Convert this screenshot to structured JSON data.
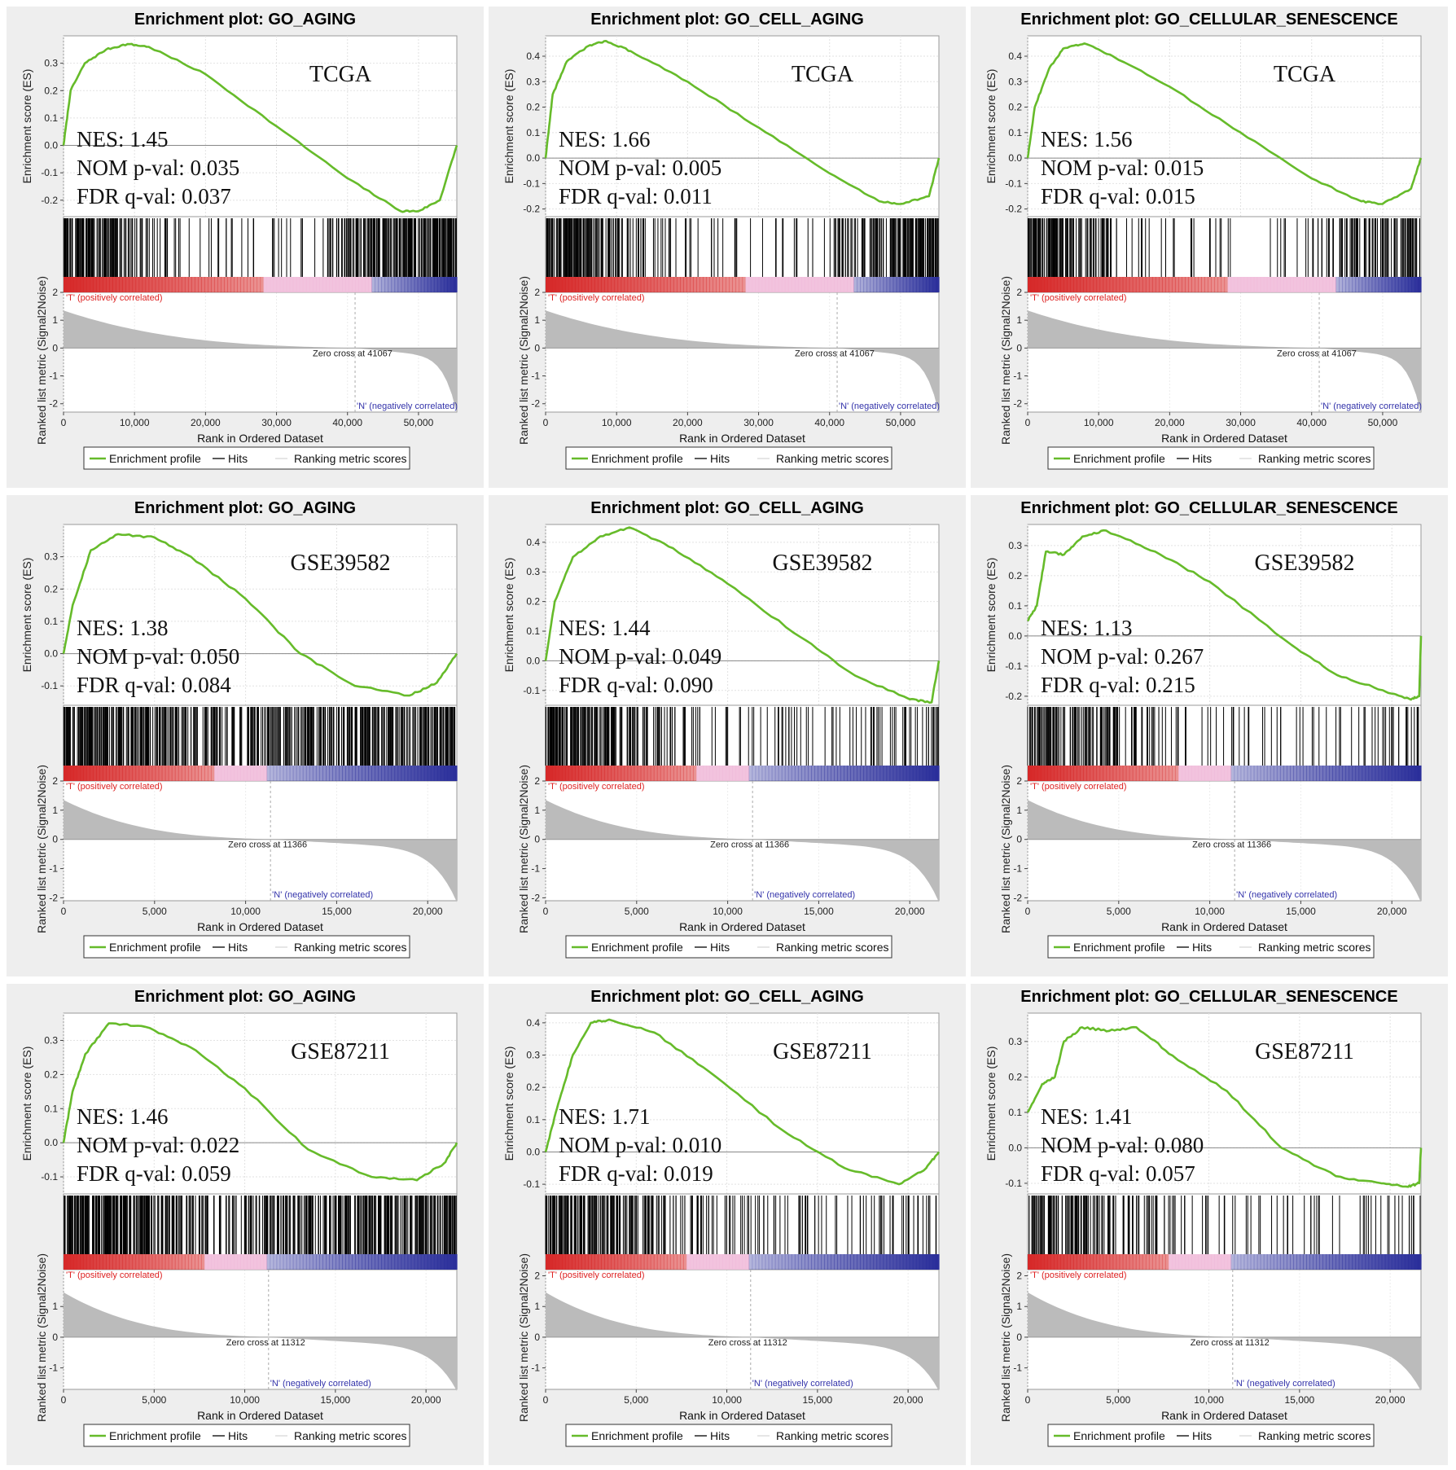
{
  "legend": {
    "profile": "Enrichment profile",
    "hits": "Hits",
    "ranking": "Ranking metric scores"
  },
  "labels": {
    "es_axis": "Enrichment score (ES)",
    "metric_axis": "Ranked list metric (Signal2Noise)",
    "x_axis": "Rank in Ordered Dataset",
    "pos": "'T' (positively correlated)",
    "neg": "'N' (negatively correlated)"
  },
  "colors": {
    "profile": "#66bb2a",
    "hits": "#000000",
    "metric": "#bbbbbb",
    "pos_text": "#dd2222",
    "neg_text": "#3333aa",
    "bar_red": "#d62828",
    "bar_pink": "#f0b8d8",
    "bar_blue": "#2a2e9a"
  },
  "chart_data": [
    {
      "type": "line",
      "title": "Enrichment plot: GO_AGING",
      "dataset": "TCGA",
      "nes": "NES: 1.45",
      "nom": "NOM p-val: 0.035",
      "fdr": "FDR q-val: 0.037",
      "zero_label": "Zero cross at 41067",
      "zero_cross": 41067,
      "n": 55400,
      "xticks": [
        0,
        10000,
        20000,
        30000,
        40000,
        50000
      ],
      "xtick_labels": [
        "0",
        "10,000",
        "20,000",
        "30,000",
        "40,000",
        "50,000"
      ],
      "yticks": [
        0.3,
        0.2,
        0.1,
        0.0,
        -0.1,
        -0.2
      ],
      "ylim": [
        -0.26,
        0.4
      ],
      "mticks": [
        2,
        1,
        0,
        -1,
        -2
      ],
      "mlim": [
        -2.3,
        2
      ],
      "es": [
        [
          0,
          0.0
        ],
        [
          1000,
          0.2
        ],
        [
          3000,
          0.3
        ],
        [
          6000,
          0.35
        ],
        [
          9000,
          0.37
        ],
        [
          12000,
          0.36
        ],
        [
          20000,
          0.26
        ],
        [
          30000,
          0.07
        ],
        [
          40000,
          -0.12
        ],
        [
          47500,
          -0.24
        ],
        [
          50000,
          -0.24
        ],
        [
          53000,
          -0.2
        ],
        [
          55400,
          0.0
        ]
      ],
      "hit_density": [
        10,
        8,
        5,
        3,
        1,
        1,
        1,
        1,
        1,
        1,
        5,
        7,
        8,
        9,
        10
      ],
      "color_segments": [
        [
          0,
          0.51,
          "red"
        ],
        [
          0.51,
          0.78,
          "pink"
        ],
        [
          0.78,
          1.0,
          "blue"
        ]
      ]
    },
    {
      "type": "line",
      "title": "Enrichment plot: GO_CELL_AGING",
      "dataset": "TCGA",
      "nes": "NES: 1.66",
      "nom": "NOM p-val: 0.005",
      "fdr": "FDR q-val: 0.011",
      "zero_label": "Zero cross at 41067",
      "zero_cross": 41067,
      "n": 55400,
      "xticks": [
        0,
        10000,
        20000,
        30000,
        40000,
        50000
      ],
      "xtick_labels": [
        "0",
        "10,000",
        "20,000",
        "30,000",
        "40,000",
        "50,000"
      ],
      "yticks": [
        0.4,
        0.3,
        0.2,
        0.1,
        0.0,
        -0.1,
        -0.2
      ],
      "ylim": [
        -0.23,
        0.48
      ],
      "mticks": [
        2,
        1,
        0,
        -1,
        -2
      ],
      "mlim": [
        -2.3,
        2
      ],
      "es": [
        [
          0,
          0.0
        ],
        [
          1000,
          0.25
        ],
        [
          3000,
          0.38
        ],
        [
          6000,
          0.44
        ],
        [
          8500,
          0.46
        ],
        [
          12000,
          0.42
        ],
        [
          20000,
          0.3
        ],
        [
          30000,
          0.12
        ],
        [
          40000,
          -0.06
        ],
        [
          47000,
          -0.17
        ],
        [
          50000,
          -0.18
        ],
        [
          54000,
          -0.15
        ],
        [
          55400,
          0.0
        ]
      ],
      "hit_density": [
        10,
        8,
        5,
        3,
        2,
        1,
        1,
        1,
        1,
        1,
        1,
        4,
        6,
        7,
        9
      ],
      "color_segments": [
        [
          0,
          0.51,
          "red"
        ],
        [
          0.51,
          0.78,
          "pink"
        ],
        [
          0.78,
          1.0,
          "blue"
        ]
      ]
    },
    {
      "type": "line",
      "title": "Enrichment plot: GO_CELLULAR_SENESCENCE",
      "dataset": "TCGA",
      "nes": "NES: 1.56",
      "nom": "NOM p-val: 0.015",
      "fdr": "FDR q-val: 0.015",
      "zero_label": "Zero cross at 41067",
      "zero_cross": 41067,
      "n": 55400,
      "xticks": [
        0,
        10000,
        20000,
        30000,
        40000,
        50000
      ],
      "xtick_labels": [
        "0",
        "10,000",
        "20,000",
        "30,000",
        "40,000",
        "50,000"
      ],
      "yticks": [
        0.4,
        0.3,
        0.2,
        0.1,
        0.0,
        -0.1,
        -0.2
      ],
      "ylim": [
        -0.23,
        0.48
      ],
      "mticks": [
        2,
        1,
        0,
        -1,
        -2
      ],
      "mlim": [
        -2.3,
        2
      ],
      "es": [
        [
          0,
          0.0
        ],
        [
          1000,
          0.2
        ],
        [
          3000,
          0.35
        ],
        [
          5000,
          0.43
        ],
        [
          8000,
          0.45
        ],
        [
          12000,
          0.4
        ],
        [
          20000,
          0.28
        ],
        [
          30000,
          0.1
        ],
        [
          40000,
          -0.08
        ],
        [
          47000,
          -0.17
        ],
        [
          50000,
          -0.18
        ],
        [
          54000,
          -0.12
        ],
        [
          55400,
          0.0
        ]
      ],
      "hit_density": [
        10,
        8,
        4,
        2,
        1,
        1,
        1,
        1,
        0,
        1,
        1,
        3,
        4,
        5,
        6
      ],
      "color_segments": [
        [
          0,
          0.51,
          "red"
        ],
        [
          0.51,
          0.78,
          "pink"
        ],
        [
          0.78,
          1.0,
          "blue"
        ]
      ]
    },
    {
      "type": "line",
      "title": "Enrichment plot: GO_AGING",
      "dataset": "GSE39582",
      "nes": "NES: 1.38",
      "nom": "NOM p-val: 0.050",
      "fdr": "FDR q-val: 0.084",
      "zero_label": "Zero cross at 11366",
      "zero_cross": 11366,
      "n": 21600,
      "xticks": [
        0,
        5000,
        10000,
        15000,
        20000
      ],
      "xtick_labels": [
        "0",
        "5,000",
        "10,000",
        "15,000",
        "20,000"
      ],
      "yticks": [
        0.3,
        0.2,
        0.1,
        0.0,
        -0.1
      ],
      "ylim": [
        -0.16,
        0.4
      ],
      "mticks": [
        2,
        1,
        0,
        -1,
        -2
      ],
      "mlim": [
        -2.1,
        2
      ],
      "es": [
        [
          0,
          0.0
        ],
        [
          500,
          0.15
        ],
        [
          1500,
          0.32
        ],
        [
          3000,
          0.37
        ],
        [
          5000,
          0.36
        ],
        [
          7000,
          0.3
        ],
        [
          10000,
          0.17
        ],
        [
          13000,
          0.0
        ],
        [
          16000,
          -0.1
        ],
        [
          19000,
          -0.13
        ],
        [
          20500,
          -0.09
        ],
        [
          21600,
          0.0
        ]
      ],
      "hit_density": [
        10,
        9,
        8,
        7,
        6,
        5,
        3,
        6,
        6,
        7,
        7,
        8,
        8,
        8,
        9
      ],
      "color_segments": [
        [
          0,
          0.38,
          "red"
        ],
        [
          0.38,
          0.52,
          "pink"
        ],
        [
          0.52,
          1.0,
          "blue"
        ]
      ]
    },
    {
      "type": "line",
      "title": "Enrichment plot: GO_CELL_AGING",
      "dataset": "GSE39582",
      "nes": "NES: 1.44",
      "nom": "NOM p-val: 0.049",
      "fdr": "FDR q-val: 0.090",
      "zero_label": "Zero cross at 11366",
      "zero_cross": 11366,
      "n": 21600,
      "xticks": [
        0,
        5000,
        10000,
        15000,
        20000
      ],
      "xtick_labels": [
        "0",
        "5,000",
        "10,000",
        "15,000",
        "20,000"
      ],
      "yticks": [
        0.4,
        0.3,
        0.2,
        0.1,
        0.0,
        -0.1
      ],
      "ylim": [
        -0.15,
        0.46
      ],
      "mticks": [
        2,
        1,
        0,
        -1,
        -2
      ],
      "mlim": [
        -2.1,
        2
      ],
      "es": [
        [
          0,
          0.0
        ],
        [
          500,
          0.2
        ],
        [
          1500,
          0.35
        ],
        [
          3000,
          0.42
        ],
        [
          4600,
          0.45
        ],
        [
          7000,
          0.38
        ],
        [
          10000,
          0.26
        ],
        [
          14000,
          0.08
        ],
        [
          17000,
          -0.05
        ],
        [
          20000,
          -0.13
        ],
        [
          21200,
          -0.14
        ],
        [
          21600,
          0.0
        ]
      ],
      "hit_density": [
        10,
        8,
        6,
        5,
        3,
        2,
        1,
        1,
        1,
        2,
        1,
        1,
        2,
        2,
        3
      ],
      "color_segments": [
        [
          0,
          0.38,
          "red"
        ],
        [
          0.38,
          0.52,
          "pink"
        ],
        [
          0.52,
          1.0,
          "blue"
        ]
      ]
    },
    {
      "type": "line",
      "title": "Enrichment plot: GO_CELLULAR_SENESCENCE",
      "dataset": "GSE39582",
      "nes": "NES: 1.13",
      "nom": "NOM p-val: 0.267",
      "fdr": "FDR q-val: 0.215",
      "zero_label": "Zero cross at 11366",
      "zero_cross": 11366,
      "n": 21600,
      "xticks": [
        0,
        5000,
        10000,
        15000,
        20000
      ],
      "xtick_labels": [
        "0",
        "5,000",
        "10,000",
        "15,000",
        "20,000"
      ],
      "yticks": [
        0.3,
        0.2,
        0.1,
        0.0,
        -0.1,
        -0.2
      ],
      "ylim": [
        -0.23,
        0.37
      ],
      "mticks": [
        2,
        1,
        0,
        -1,
        -2
      ],
      "mlim": [
        -2.1,
        2
      ],
      "es": [
        [
          0,
          0.05
        ],
        [
          500,
          0.1
        ],
        [
          1000,
          0.28
        ],
        [
          2000,
          0.27
        ],
        [
          3000,
          0.33
        ],
        [
          4300,
          0.35
        ],
        [
          7000,
          0.28
        ],
        [
          10000,
          0.18
        ],
        [
          14500,
          -0.03
        ],
        [
          17000,
          -0.13
        ],
        [
          19500,
          -0.18
        ],
        [
          21000,
          -0.21
        ],
        [
          21500,
          -0.2
        ],
        [
          21600,
          0.0
        ]
      ],
      "hit_density": [
        8,
        6,
        5,
        4,
        3,
        2,
        1,
        1,
        1,
        1,
        1,
        1,
        1,
        2,
        2
      ],
      "color_segments": [
        [
          0,
          0.38,
          "red"
        ],
        [
          0.38,
          0.52,
          "pink"
        ],
        [
          0.52,
          1.0,
          "blue"
        ]
      ]
    },
    {
      "type": "line",
      "title": "Enrichment plot: GO_AGING",
      "dataset": "GSE87211",
      "nes": "NES: 1.46",
      "nom": "NOM p-val: 0.022",
      "fdr": "FDR q-val: 0.059",
      "zero_label": "Zero cross at 11312",
      "zero_cross": 11312,
      "n": 21700,
      "xticks": [
        0,
        5000,
        10000,
        15000,
        20000
      ],
      "xtick_labels": [
        "0",
        "5,000",
        "10,000",
        "15,000",
        "20,000"
      ],
      "yticks": [
        0.3,
        0.2,
        0.1,
        0.0,
        -0.1
      ],
      "ylim": [
        -0.15,
        0.38
      ],
      "mticks": [
        1,
        0,
        -1
      ],
      "mlim": [
        -1.7,
        2.2
      ],
      "es": [
        [
          0,
          0.0
        ],
        [
          500,
          0.15
        ],
        [
          1200,
          0.26
        ],
        [
          2500,
          0.35
        ],
        [
          4500,
          0.34
        ],
        [
          7000,
          0.28
        ],
        [
          10000,
          0.16
        ],
        [
          13500,
          -0.02
        ],
        [
          17000,
          -0.1
        ],
        [
          19500,
          -0.11
        ],
        [
          21000,
          -0.06
        ],
        [
          21700,
          0.0
        ]
      ],
      "hit_density": [
        10,
        9,
        8,
        7,
        6,
        4,
        3,
        5,
        6,
        6,
        7,
        7,
        8,
        8,
        8
      ],
      "color_segments": [
        [
          0,
          0.36,
          "red"
        ],
        [
          0.36,
          0.52,
          "pink"
        ],
        [
          0.52,
          1.0,
          "blue"
        ]
      ]
    },
    {
      "type": "line",
      "title": "Enrichment plot: GO_CELL_AGING",
      "dataset": "GSE87211",
      "nes": "NES: 1.71",
      "nom": "NOM p-val: 0.010",
      "fdr": "FDR q-val: 0.019",
      "zero_label": "Zero cross at 11312",
      "zero_cross": 11312,
      "n": 21700,
      "xticks": [
        0,
        5000,
        10000,
        15000,
        20000
      ],
      "xtick_labels": [
        "0",
        "5,000",
        "10,000",
        "15,000",
        "20,000"
      ],
      "yticks": [
        0.4,
        0.3,
        0.2,
        0.1,
        0.0,
        -0.1
      ],
      "ylim": [
        -0.13,
        0.43
      ],
      "mticks": [
        2,
        1,
        0,
        -1
      ],
      "mlim": [
        -1.7,
        2.2
      ],
      "es": [
        [
          0,
          0.0
        ],
        [
          700,
          0.15
        ],
        [
          1500,
          0.3
        ],
        [
          2500,
          0.4
        ],
        [
          3500,
          0.41
        ],
        [
          6000,
          0.37
        ],
        [
          9000,
          0.25
        ],
        [
          13000,
          0.07
        ],
        [
          16500,
          -0.05
        ],
        [
          19500,
          -0.1
        ],
        [
          21000,
          -0.05
        ],
        [
          21700,
          0.0
        ]
      ],
      "hit_density": [
        10,
        8,
        6,
        5,
        4,
        3,
        2,
        2,
        2,
        2,
        1,
        1,
        2,
        2,
        2
      ],
      "color_segments": [
        [
          0,
          0.36,
          "red"
        ],
        [
          0.36,
          0.52,
          "pink"
        ],
        [
          0.52,
          1.0,
          "blue"
        ]
      ]
    },
    {
      "type": "line",
      "title": "Enrichment plot: GO_CELLULAR_SENESCENCE",
      "dataset": "GSE87211",
      "nes": "NES: 1.41",
      "nom": "NOM p-val: 0.080",
      "fdr": "FDR q-val: 0.057",
      "zero_label": "Zero cross at 11312",
      "zero_cross": 11312,
      "n": 21700,
      "xticks": [
        0,
        5000,
        10000,
        15000,
        20000
      ],
      "xtick_labels": [
        "0",
        "5,000",
        "10,000",
        "15,000",
        "20,000"
      ],
      "yticks": [
        0.3,
        0.2,
        0.1,
        0.0,
        -0.1
      ],
      "ylim": [
        -0.13,
        0.38
      ],
      "mticks": [
        2,
        1,
        0,
        -1
      ],
      "mlim": [
        -1.7,
        2.2
      ],
      "es": [
        [
          0,
          0.1
        ],
        [
          800,
          0.18
        ],
        [
          1500,
          0.2
        ],
        [
          2000,
          0.3
        ],
        [
          3000,
          0.34
        ],
        [
          4500,
          0.33
        ],
        [
          6000,
          0.34
        ],
        [
          8000,
          0.26
        ],
        [
          11000,
          0.16
        ],
        [
          14000,
          0.0
        ],
        [
          17000,
          -0.08
        ],
        [
          19500,
          -0.1
        ],
        [
          21000,
          -0.11
        ],
        [
          21600,
          -0.1
        ],
        [
          21700,
          0.0
        ]
      ],
      "hit_density": [
        7,
        6,
        5,
        4,
        3,
        2,
        1,
        1,
        1,
        1,
        1,
        1,
        1,
        1,
        2
      ],
      "color_segments": [
        [
          0,
          0.36,
          "red"
        ],
        [
          0.36,
          0.52,
          "pink"
        ],
        [
          0.52,
          1.0,
          "blue"
        ]
      ]
    }
  ]
}
